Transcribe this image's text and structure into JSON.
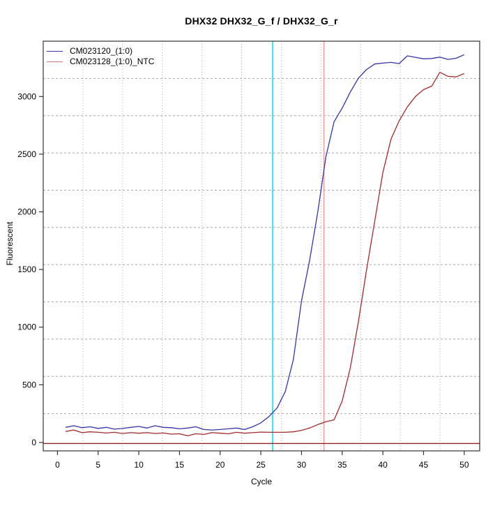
{
  "chart_data": {
    "type": "line",
    "title": "DHX32  DHX32_G_f / DHX32_G_r",
    "xlabel": "Cycle",
    "ylabel": "Fluorescent",
    "x_ticks": [
      0,
      5,
      10,
      15,
      20,
      25,
      30,
      35,
      40,
      45,
      50
    ],
    "y_ticks": [
      0,
      500,
      1000,
      1500,
      2000,
      2500,
      3000
    ],
    "xlim": [
      -1.75,
      51.9
    ],
    "ylim": [
      -73,
      3480
    ],
    "grid": {
      "nx": 11,
      "ny": 11,
      "color": "#a8a8a8",
      "note": "dotted gray grid, equal divisions not aligned to ticks"
    },
    "legend_position": "top-left",
    "x": [
      1,
      2,
      3,
      4,
      5,
      6,
      7,
      8,
      9,
      10,
      11,
      12,
      13,
      14,
      15,
      16,
      17,
      18,
      19,
      20,
      21,
      22,
      23,
      24,
      25,
      26,
      27,
      28,
      29,
      30,
      31,
      32,
      33,
      34,
      35,
      36,
      37,
      38,
      39,
      40,
      41,
      42,
      43,
      44,
      45,
      46,
      47,
      48,
      49,
      50
    ],
    "series": [
      {
        "name": "CM023120_(1:0)",
        "color": "#3434ae",
        "legend_color": "#3434ae",
        "values": [
          131,
          145,
          128,
          136,
          122,
          131,
          115,
          121,
          131,
          139,
          125,
          145,
          131,
          128,
          118,
          125,
          136,
          112,
          108,
          112,
          118,
          125,
          112,
          136,
          170,
          225,
          300,
          440,
          720,
          1230,
          1580,
          2000,
          2480,
          2780,
          2900,
          3040,
          3160,
          3235,
          3282,
          3290,
          3296,
          3286,
          3353,
          3340,
          3327,
          3330,
          3342,
          3322,
          3332,
          3363
        ]
      },
      {
        "name": "CM023128_(1:0)_NTC",
        "color": "#a42a2a",
        "legend_color": "#d07878",
        "values": [
          95,
          108,
          85,
          92,
          88,
          82,
          88,
          78,
          85,
          80,
          85,
          78,
          82,
          72,
          75,
          58,
          75,
          70,
          85,
          80,
          75,
          88,
          80,
          85,
          90,
          88,
          88,
          88,
          92,
          105,
          125,
          155,
          180,
          196,
          360,
          650,
          1050,
          1500,
          1920,
          2340,
          2630,
          2790,
          2910,
          3000,
          3060,
          3090,
          3210,
          3175,
          3170,
          3200
        ]
      }
    ],
    "annotations": {
      "vlines": [
        {
          "x": 26.45,
          "color": "#00e8e8",
          "name": "cyan-threshold-cycle-line"
        },
        {
          "x": 32.75,
          "color": "#f2a2a2",
          "name": "salmon-threshold-cycle-line"
        }
      ],
      "hlines": [
        {
          "y": -9,
          "color": "#8b2323",
          "name": "dark-red-zero-baseline"
        }
      ]
    }
  },
  "colors": {
    "background": "#ffffff",
    "axis_box": "#333333",
    "tick_text": "#000000"
  }
}
